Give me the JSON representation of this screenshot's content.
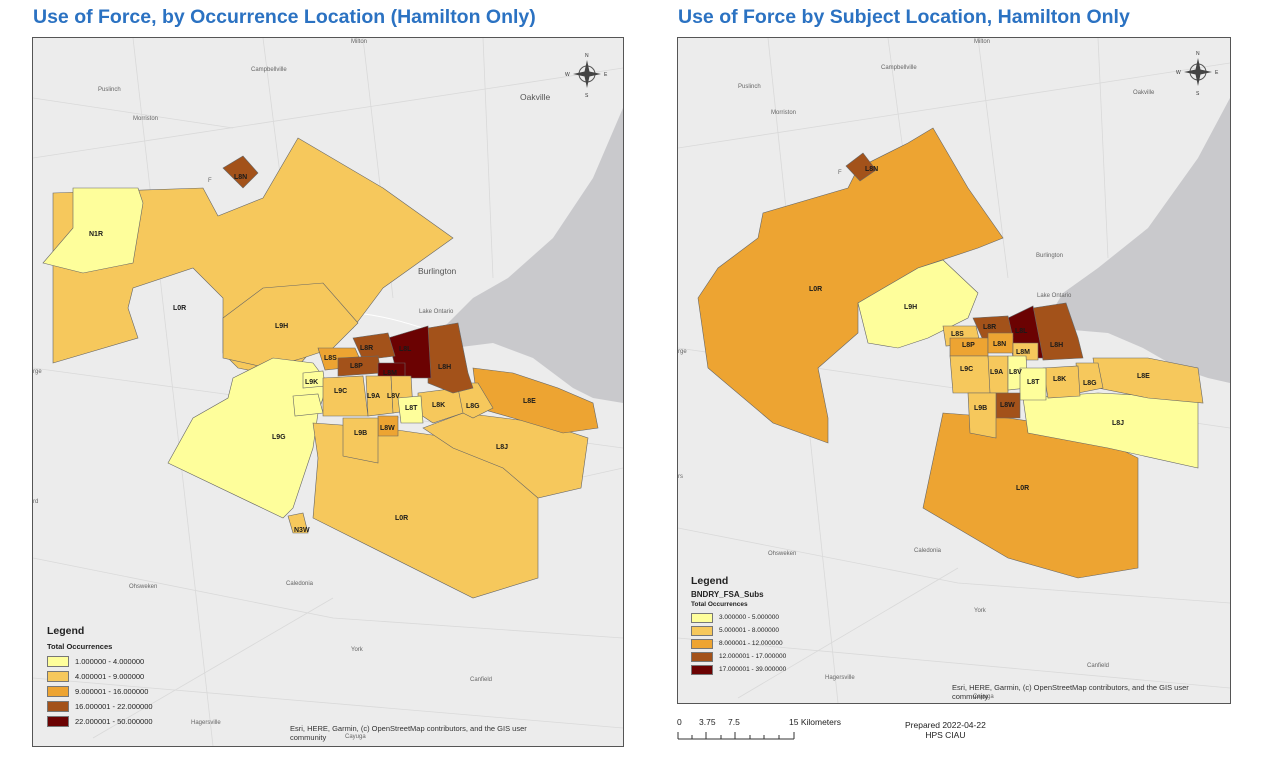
{
  "colors": {
    "c1": "#fefe9b",
    "c2": "#f6c85c",
    "c3": "#eda432",
    "c4": "#a3521a",
    "c5": "#6b0202",
    "background": "#ececec",
    "lake": "#c9c9cc",
    "title": "#2b72c2"
  },
  "left_map": {
    "title": "Use of Force, by Occurrence Location (Hamilton Only)",
    "places": [
      "Milton",
      "Campbellville",
      "Puslinch",
      "Morriston",
      "Oakville",
      "Burlington",
      "Lake Ontario",
      "Ohsweken",
      "Caledonia",
      "York",
      "Canfield",
      "Hagersville",
      "Cayuga",
      "rge",
      "rd",
      "F"
    ],
    "fsa_labels": [
      "L8N",
      "N1R",
      "L0R",
      "L9H",
      "L8R",
      "L8L",
      "L8S",
      "L8P",
      "L8M",
      "L8H",
      "L9K",
      "L9C",
      "L9A",
      "L8V",
      "L8T",
      "L8K",
      "L8G",
      "L8E",
      "L9G",
      "L9B",
      "L8W",
      "L8J",
      "L0R",
      "N3W"
    ],
    "legend": {
      "title": "Legend",
      "subtitle": "Total Occurrences",
      "items": [
        {
          "label": "1.000000 - 4.000000",
          "color": "#fefe9b"
        },
        {
          "label": "4.000001 - 9.000000",
          "color": "#f6c85c"
        },
        {
          "label": "9.000001 - 16.000000",
          "color": "#eda432"
        },
        {
          "label": "16.000001 - 22.000000",
          "color": "#a3521a"
        },
        {
          "label": "22.000001 - 50.000000",
          "color": "#6b0202"
        }
      ]
    },
    "credit_line1": "Esri, HERE, Garmin, (c) OpenStreetMap contributors, and the GIS user",
    "credit_line2": "community",
    "compass": {
      "n": "N",
      "s": "S",
      "e": "E",
      "w": "W"
    }
  },
  "right_map": {
    "title": "Use of Force by Subject Location, Hamilton Only",
    "places": [
      "Milton",
      "Campbellville",
      "Puslinch",
      "Morriston",
      "Oakville",
      "Burlington",
      "Lake Ontario",
      "Ohsweken",
      "Caledonia",
      "York",
      "Canfield",
      "Hagersville",
      "Cayuga",
      "rge",
      "rs",
      "F"
    ],
    "fsa_labels": [
      "L8N",
      "L0R",
      "L9H",
      "L8R",
      "L8L",
      "L8S",
      "L8P",
      "L8N",
      "L8M",
      "L8H",
      "L9C",
      "L9A",
      "L8V",
      "L8T",
      "L8K",
      "L8G",
      "L8E",
      "L9B",
      "L8W",
      "L8J",
      "L0R"
    ],
    "legend": {
      "title": "Legend",
      "layer": "BNDRY_FSA_Subs",
      "subtitle": "Total Occurrences",
      "items": [
        {
          "label": "3.000000 - 5.000000",
          "color": "#fefe9b"
        },
        {
          "label": "5.000001 - 8.000000",
          "color": "#f6c85c"
        },
        {
          "label": "8.000001 - 12.000000",
          "color": "#eda432"
        },
        {
          "label": "12.000001 - 17.000000",
          "color": "#a3521a"
        },
        {
          "label": "17.000001 - 39.000000",
          "color": "#6b0202"
        }
      ]
    },
    "credit_line1": "Esri, HERE, Garmin, (c) OpenStreetMap contributors, and the GIS user",
    "credit_line2": "community",
    "compass": {
      "n": "N",
      "s": "S",
      "e": "E",
      "w": "W"
    }
  },
  "scale_bar": {
    "labels": [
      "0",
      "3.75",
      "7.5",
      "15 Kilometers"
    ]
  },
  "prepared": {
    "line1": "Prepared 2022-04-22",
    "line2": "HPS CIAU"
  }
}
